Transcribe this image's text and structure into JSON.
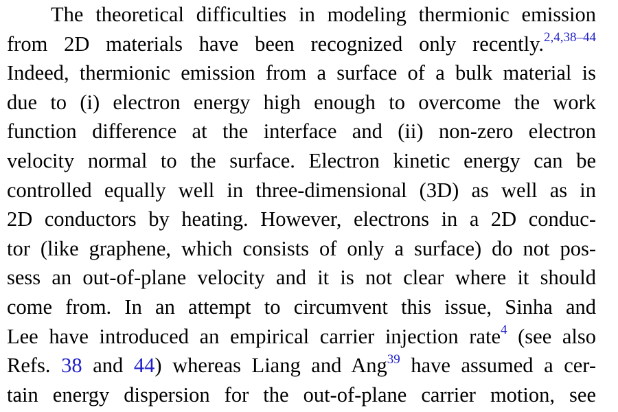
{
  "paragraph": {
    "lines": [
      {
        "text": "The theoretical difficulties in modeling thermionic emission"
      },
      {
        "before": "from 2D materials have been recognized only recently.",
        "sup": "2,4,38–44"
      },
      {
        "text": "Indeed, thermionic emission from a surface of a bulk material is"
      },
      {
        "text": "due to (i) electron energy high enough to overcome the work"
      },
      {
        "text": "function difference at the interface and (ii) non-zero electron"
      },
      {
        "text": "velocity normal to the surface. Electron kinetic energy can be"
      },
      {
        "text": "controlled equally well in three-dimensional (3D) as well as in"
      },
      {
        "text": "2D conductors by heating. However, electrons in a 2D conduc-"
      },
      {
        "text": "tor (like graphene, which consists of only a surface) do not pos-"
      },
      {
        "text": "sess an out-of-plane velocity and it is not clear where it should"
      },
      {
        "text": "come from. In an attempt to circumvent this issue, Sinha and"
      },
      {
        "before": "Lee have introduced an empirical carrier injection rate",
        "sup": "4",
        "after": " (see also"
      },
      {
        "before": "Refs. ",
        "ref1": "38",
        "mid": " and ",
        "ref2": "44",
        "mid2": ") whereas Liang and Ang",
        "sup": "39",
        "after": " have assumed a cer-"
      },
      {
        "text": "tain energy dispersion for the out-of-plane carrier motion, see"
      }
    ]
  },
  "colors": {
    "text": "#000000",
    "link": "#1f1fc8",
    "background": "#ffffff"
  }
}
